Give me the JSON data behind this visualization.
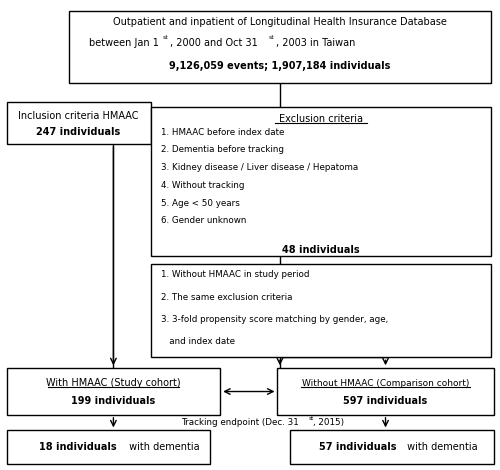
{
  "bg_color": "#ffffff",
  "title_line1": "Outpatient and inpatient of Longitudinal Health Insurance Database",
  "title_line2a": "between Jan 1",
  "title_line2_sup1": "st",
  "title_line2b": ", 2000 and Oct 31",
  "title_line2_sup2": "st",
  "title_line2c": ", 2003 in Taiwan",
  "title_line3": "9,126,059 events; 1,907,184 individuals",
  "inclusion_line1": "Inclusion criteria HMAAC",
  "inclusion_line2": "247 individuals",
  "exclusion_title": "Exclusion criteria",
  "exclusion_items": [
    "1. HMAAC before index date",
    "2. Dementia before tracking",
    "3. Kidney disease / Liver disease / Hepatoma",
    "4. Without tracking",
    "5. Age < 50 years",
    "6. Gender unknown"
  ],
  "exclusion_count": "48 individuals",
  "comparison_items": [
    "1. Without HMAAC in study period",
    "2. The same exclusion criteria",
    "3. 3-fold propensity score matching by gender, age,",
    "   and index date"
  ],
  "study_cohort_line1": "With HMAAC (Study cohort)",
  "study_cohort_line2": "199 individuals",
  "comp_cohort_line1": "Without HMAAC (Comparison cohort)",
  "comp_cohort_line2": "597 individuals",
  "study_outcome_bold": "18 individuals",
  "study_outcome_normal": " with dementia",
  "comp_outcome_bold": "57 individuals",
  "comp_outcome_normal": " with dementia",
  "tracking_a": "Tracking endpoint (Dec. 31",
  "tracking_sup": "st",
  "tracking_b": ", 2015)"
}
